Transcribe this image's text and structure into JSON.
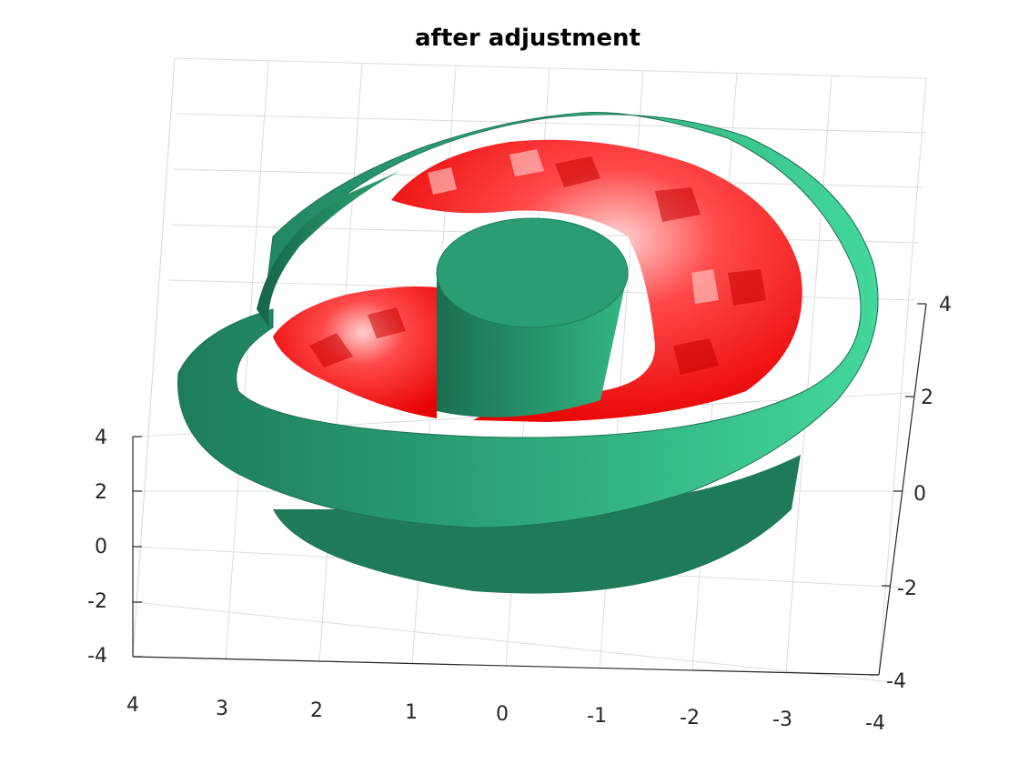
{
  "chart_data": {
    "type": "3d-surface",
    "title": "after adjustment",
    "xlabel": "",
    "ylabel": "",
    "zlabel": "",
    "x_ticks": [
      "4",
      "3",
      "2",
      "1",
      "0",
      "-1",
      "-2",
      "-3",
      "-4"
    ],
    "y_ticks": [
      "4",
      "2",
      "0",
      "-2",
      "-4"
    ],
    "z_ticks": [
      "4",
      "2",
      "0",
      "-2",
      "-4"
    ],
    "xlim": [
      -4,
      4
    ],
    "ylim": [
      -4,
      4
    ],
    "zlim": [
      -4,
      4
    ],
    "grid": true,
    "series": [
      {
        "surface": "outer-spiral-surface",
        "color": "#2fbf8a"
      },
      {
        "surface": "inner-textured-surface",
        "color": "#ff1a1a"
      }
    ]
  }
}
